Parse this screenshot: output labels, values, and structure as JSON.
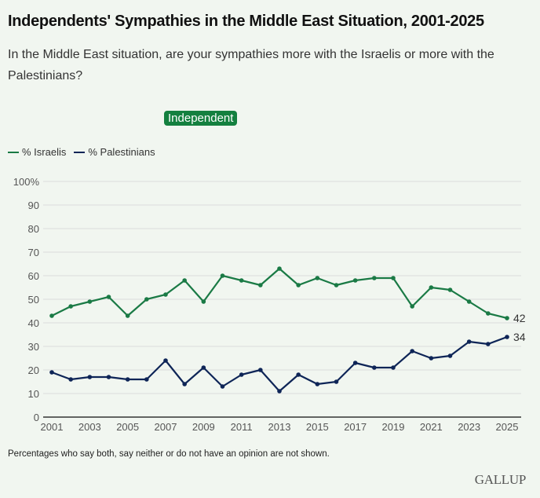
{
  "header": {
    "title": "Independents' Sympathies in the Middle East Situation, 2001-2025",
    "subtitle": "In the Middle East situation, are your sympathies more with the Israelis or more with the Palestinians?"
  },
  "filter_badge": "Independent",
  "footer": {
    "note": "Percentages who say both, say neither or do not have an opinion are not shown.",
    "logo": "GALLUP"
  },
  "colors": {
    "israelis": "#1a7a45",
    "palestinians": "#0e2557",
    "badge": "#14803f",
    "background": "#f1f6f0"
  },
  "chart_data": {
    "type": "line",
    "title": "Independents' Sympathies in the Middle East Situation, 2001-2025",
    "xlabel": "",
    "ylabel": "",
    "x": [
      2001,
      2002,
      2003,
      2004,
      2005,
      2006,
      2007,
      2008,
      2009,
      2010,
      2011,
      2012,
      2013,
      2014,
      2015,
      2016,
      2017,
      2018,
      2019,
      2020,
      2021,
      2022,
      2023,
      2024,
      2025
    ],
    "x_ticks": [
      "2001",
      "2003",
      "2005",
      "2007",
      "2009",
      "2011",
      "2013",
      "2015",
      "2017",
      "2019",
      "2021",
      "2023",
      "2025"
    ],
    "y_ticks": [
      "0",
      "10",
      "20",
      "30",
      "40",
      "50",
      "60",
      "70",
      "80",
      "90",
      "100%"
    ],
    "ylim": [
      0,
      100
    ],
    "grid": true,
    "legend_position": "top-left",
    "series": [
      {
        "name": "% Israelis",
        "color": "#1a7a45",
        "values": [
          43,
          47,
          49,
          51,
          43,
          50,
          52,
          58,
          49,
          60,
          58,
          56,
          63,
          56,
          59,
          56,
          58,
          59,
          59,
          47,
          55,
          54,
          49,
          44,
          42
        ],
        "end_label": "42"
      },
      {
        "name": "% Palestinians",
        "color": "#0e2557",
        "values": [
          19,
          16,
          17,
          17,
          16,
          16,
          24,
          14,
          21,
          13,
          18,
          20,
          11,
          18,
          14,
          15,
          23,
          21,
          21,
          28,
          25,
          26,
          32,
          31,
          34
        ],
        "end_label": "34"
      }
    ]
  }
}
